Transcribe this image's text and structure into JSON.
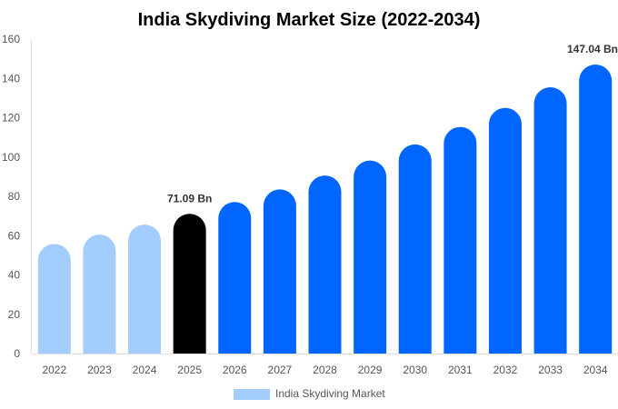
{
  "chart_data": {
    "type": "bar",
    "title": "India Skydiving Market Size (2022-2034)",
    "categories": [
      "2022",
      "2023",
      "2024",
      "2025",
      "2026",
      "2027",
      "2028",
      "2029",
      "2030",
      "2031",
      "2032",
      "2033",
      "2034"
    ],
    "series": [
      {
        "name": "India Skydiving Market",
        "values": [
          55.8,
          60.5,
          65.6,
          71.09,
          77.1,
          83.5,
          90.6,
          98.2,
          106.4,
          115.3,
          125.0,
          135.5,
          147.04
        ]
      }
    ],
    "data_labels": {
      "3": "71.09 Bn",
      "12": "147.04 Bn"
    },
    "ylim": [
      0,
      160
    ],
    "yticks": [
      0,
      20,
      40,
      60,
      80,
      100,
      120,
      140,
      160
    ],
    "xlabel": "",
    "ylabel": "",
    "grid": false,
    "legend_position": "bottom",
    "colors": {
      "historical": "#a3cdfd",
      "current": "#000000",
      "forecast": "#0066ff"
    }
  }
}
